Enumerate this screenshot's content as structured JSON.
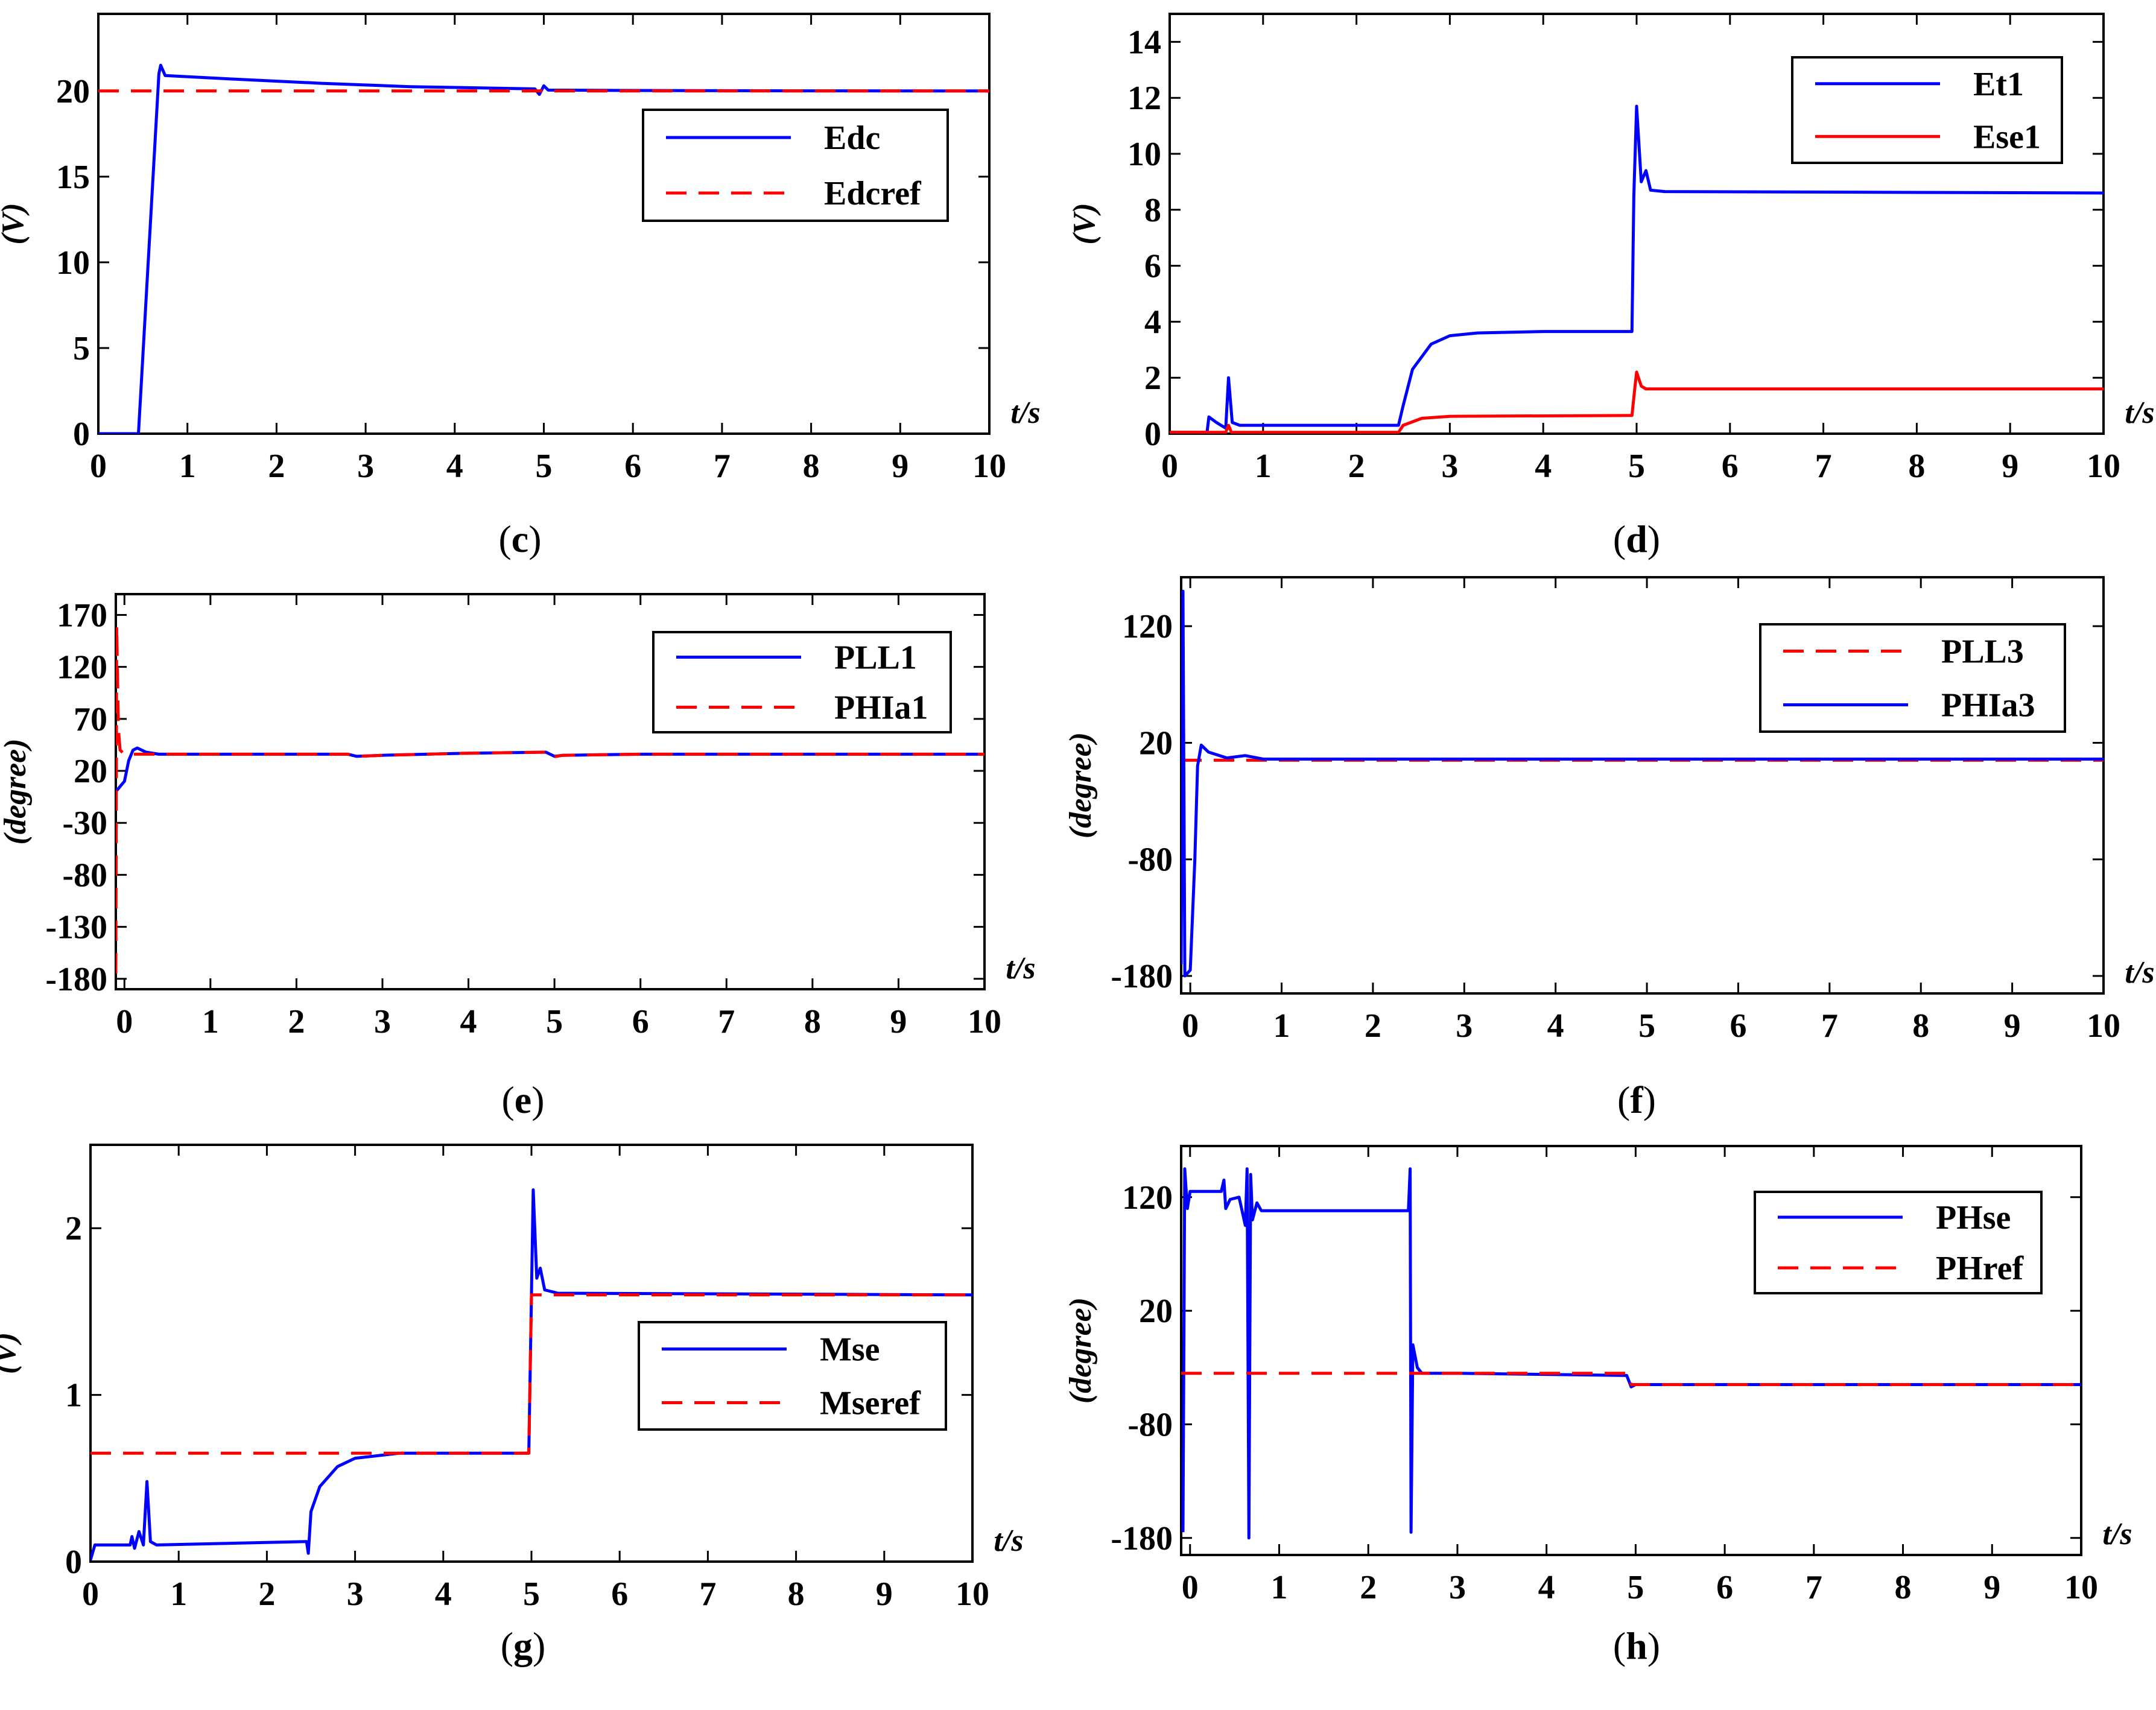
{
  "chart_data": [
    {
      "id": "c",
      "type": "line",
      "caption": "(c)",
      "caption_letter": "c",
      "ylabel": "(V)",
      "xlabel": "t/s",
      "xlim": [
        0,
        10
      ],
      "ylim": [
        0,
        24.5
      ],
      "xticks": [
        0,
        1,
        2,
        3,
        4,
        5,
        6,
        7,
        8,
        9,
        10
      ],
      "yticks": [
        0,
        5,
        10,
        15,
        20
      ],
      "ytick_labels": [
        "0",
        "5",
        "10",
        "15",
        "20"
      ],
      "legend_position": "upper-right",
      "series": [
        {
          "name": "Edc",
          "color": "#0000ff",
          "dash": false,
          "points": [
            [
              0,
              0
            ],
            [
              0.45,
              0
            ],
            [
              0.68,
              21
            ],
            [
              0.7,
              21.5
            ],
            [
              0.75,
              20.9
            ],
            [
              1.5,
              20.7
            ],
            [
              2.5,
              20.45
            ],
            [
              3.5,
              20.25
            ],
            [
              4.9,
              20.12
            ],
            [
              4.95,
              19.8
            ],
            [
              5.0,
              20.3
            ],
            [
              5.05,
              20.05
            ],
            [
              6,
              20.03
            ],
            [
              8,
              20.01
            ],
            [
              10,
              20.0
            ]
          ]
        },
        {
          "name": "Edcref",
          "color": "#ff0000",
          "dash": true,
          "points": [
            [
              0,
              20
            ],
            [
              10,
              20
            ]
          ]
        }
      ]
    },
    {
      "id": "d",
      "type": "line",
      "caption": "(d)",
      "caption_letter": "d",
      "ylabel": "(V)",
      "xlabel": "t/s",
      "xlim": [
        0,
        10
      ],
      "ylim": [
        0,
        15
      ],
      "xticks": [
        0,
        1,
        2,
        3,
        4,
        5,
        6,
        7,
        8,
        9,
        10
      ],
      "yticks": [
        0,
        2,
        4,
        6,
        8,
        10,
        12,
        14
      ],
      "ytick_labels": [
        "0",
        "2",
        "4",
        "6",
        "8",
        "10",
        "12",
        "14"
      ],
      "legend_position": "upper-right",
      "series": [
        {
          "name": "Et1",
          "color": "#0000ff",
          "dash": false,
          "points": [
            [
              0,
              0.05
            ],
            [
              0.4,
              0.05
            ],
            [
              0.42,
              0.6
            ],
            [
              0.5,
              0.4
            ],
            [
              0.55,
              0.3
            ],
            [
              0.6,
              0.2
            ],
            [
              0.63,
              2.0
            ],
            [
              0.67,
              0.4
            ],
            [
              0.75,
              0.3
            ],
            [
              2.45,
              0.3
            ],
            [
              2.5,
              1.0
            ],
            [
              2.6,
              2.3
            ],
            [
              2.8,
              3.2
            ],
            [
              3.0,
              3.5
            ],
            [
              3.3,
              3.6
            ],
            [
              4.0,
              3.65
            ],
            [
              4.95,
              3.65
            ],
            [
              4.97,
              8.5
            ],
            [
              5.0,
              11.7
            ],
            [
              5.05,
              9.0
            ],
            [
              5.1,
              9.4
            ],
            [
              5.15,
              8.7
            ],
            [
              5.3,
              8.65
            ],
            [
              10,
              8.6
            ]
          ]
        },
        {
          "name": "Ese1",
          "color": "#ff0000",
          "dash": false,
          "points": [
            [
              0,
              0.05
            ],
            [
              0.6,
              0.05
            ],
            [
              0.63,
              0.3
            ],
            [
              0.66,
              0.05
            ],
            [
              2.45,
              0.05
            ],
            [
              2.5,
              0.3
            ],
            [
              2.7,
              0.55
            ],
            [
              3.0,
              0.62
            ],
            [
              4.95,
              0.65
            ],
            [
              4.98,
              1.6
            ],
            [
              5.0,
              2.2
            ],
            [
              5.05,
              1.7
            ],
            [
              5.1,
              1.6
            ],
            [
              10,
              1.6
            ]
          ]
        }
      ]
    },
    {
      "id": "e",
      "type": "line",
      "caption": "(e)",
      "caption_letter": "e",
      "ylabel": "(degree)",
      "xlabel": "t/s",
      "xlim": [
        -0.1,
        10
      ],
      "ylim": [
        -190,
        190
      ],
      "xticks": [
        0,
        1,
        2,
        3,
        4,
        5,
        6,
        7,
        8,
        9,
        10
      ],
      "yticks": [
        -180,
        -130,
        -80,
        -30,
        20,
        70,
        120,
        170
      ],
      "ytick_labels": [
        "-180",
        "-130",
        "-80",
        "-30",
        "20",
        "70",
        "120",
        "170"
      ],
      "legend_position": "upper-right",
      "series": [
        {
          "name": "PLL1",
          "color": "#0000ff",
          "dash": false,
          "points": [
            [
              -0.1,
              0
            ],
            [
              -0.05,
              5
            ],
            [
              0,
              10
            ],
            [
              0.05,
              30
            ],
            [
              0.1,
              40
            ],
            [
              0.15,
              42
            ],
            [
              0.25,
              38
            ],
            [
              0.4,
              36
            ],
            [
              1,
              36
            ],
            [
              2.6,
              36
            ],
            [
              2.7,
              34
            ],
            [
              3,
              35
            ],
            [
              4,
              37
            ],
            [
              4.9,
              38
            ],
            [
              5.0,
              34
            ],
            [
              5.1,
              35
            ],
            [
              6,
              36
            ],
            [
              10,
              36
            ]
          ]
        },
        {
          "name": "PHIa1",
          "color": "#ff0000",
          "dash": true,
          "points": [
            [
              -0.1,
              -175
            ],
            [
              -0.09,
              160
            ],
            [
              -0.07,
              60
            ],
            [
              -0.05,
              40
            ],
            [
              0,
              36
            ],
            [
              1,
              36
            ],
            [
              2.6,
              36
            ],
            [
              2.7,
              34
            ],
            [
              3,
              35
            ],
            [
              4,
              37
            ],
            [
              4.9,
              38
            ],
            [
              4.95,
              33
            ],
            [
              5.1,
              35
            ],
            [
              6,
              36
            ],
            [
              10,
              36
            ]
          ]
        }
      ]
    },
    {
      "id": "f",
      "type": "line",
      "caption": "(f)",
      "caption_letter": "f",
      "ylabel": "(degree)",
      "xlabel": "t/s",
      "xlim": [
        -0.1,
        10
      ],
      "ylim": [
        -195,
        162
      ],
      "xticks": [
        0,
        1,
        2,
        3,
        4,
        5,
        6,
        7,
        8,
        9,
        10
      ],
      "yticks": [
        -180,
        -80,
        20,
        120
      ],
      "ytick_labels": [
        "-180",
        "-80",
        "20",
        "120"
      ],
      "legend_position": "upper-right",
      "series": [
        {
          "name": "PLL3",
          "color": "#ff0000",
          "dash": true,
          "points": [
            [
              -0.1,
              5
            ],
            [
              10,
              5
            ]
          ]
        },
        {
          "name": "PHIa3",
          "color": "#0000ff",
          "dash": false,
          "points": [
            [
              -0.1,
              -170
            ],
            [
              -0.08,
              150
            ],
            [
              -0.06,
              -180
            ],
            [
              0,
              -175
            ],
            [
              0.05,
              -80
            ],
            [
              0.08,
              0
            ],
            [
              0.12,
              18
            ],
            [
              0.2,
              12
            ],
            [
              0.4,
              7
            ],
            [
              0.6,
              9
            ],
            [
              0.8,
              6
            ],
            [
              1.5,
              6
            ],
            [
              10,
              6
            ]
          ]
        }
      ]
    },
    {
      "id": "g",
      "type": "line",
      "caption": "(g)",
      "caption_letter": "g",
      "ylabel": "(V)",
      "xlabel": "t/s",
      "xlim": [
        0,
        10
      ],
      "ylim": [
        0,
        2.5
      ],
      "xticks": [
        0,
        1,
        2,
        3,
        4,
        5,
        6,
        7,
        8,
        9,
        10
      ],
      "yticks": [
        0,
        1,
        2
      ],
      "ytick_labels": [
        "0",
        "1",
        "2"
      ],
      "legend_position": "center-right",
      "series": [
        {
          "name": "Mse",
          "color": "#0000ff",
          "dash": false,
          "points": [
            [
              0,
              0.01
            ],
            [
              0.05,
              0.1
            ],
            [
              0.45,
              0.1
            ],
            [
              0.47,
              0.15
            ],
            [
              0.5,
              0.08
            ],
            [
              0.55,
              0.18
            ],
            [
              0.6,
              0.1
            ],
            [
              0.64,
              0.48
            ],
            [
              0.68,
              0.12
            ],
            [
              0.75,
              0.1
            ],
            [
              2.45,
              0.12
            ],
            [
              2.47,
              0.05
            ],
            [
              2.5,
              0.3
            ],
            [
              2.6,
              0.45
            ],
            [
              2.8,
              0.57
            ],
            [
              3.0,
              0.62
            ],
            [
              3.5,
              0.65
            ],
            [
              4.97,
              0.65
            ],
            [
              5.0,
              1.6
            ],
            [
              5.02,
              2.23
            ],
            [
              5.06,
              1.7
            ],
            [
              5.1,
              1.76
            ],
            [
              5.15,
              1.63
            ],
            [
              5.3,
              1.61
            ],
            [
              10,
              1.6
            ]
          ]
        },
        {
          "name": "Mseref",
          "color": "#ff0000",
          "dash": true,
          "points": [
            [
              0,
              0.65
            ],
            [
              4.97,
              0.65
            ],
            [
              5.0,
              1.6
            ],
            [
              10,
              1.6
            ]
          ]
        }
      ]
    },
    {
      "id": "h",
      "type": "line",
      "caption": "(h)",
      "caption_letter": "h",
      "ylabel": "(degree)",
      "xlabel": "t/s",
      "xlim": [
        -0.1,
        10
      ],
      "ylim": [
        -195,
        165
      ],
      "xticks": [
        0,
        1,
        2,
        3,
        4,
        5,
        6,
        7,
        8,
        9,
        10
      ],
      "yticks": [
        -180,
        -80,
        20,
        120
      ],
      "ytick_labels": [
        "-180",
        "-80",
        "20",
        "120"
      ],
      "legend_position": "upper-right",
      "series": [
        {
          "name": "PHse",
          "color": "#0000ff",
          "dash": false,
          "points": [
            [
              -0.08,
              -175
            ],
            [
              -0.06,
              145
            ],
            [
              -0.03,
              110
            ],
            [
              0,
              125
            ],
            [
              0.35,
              125
            ],
            [
              0.38,
              135
            ],
            [
              0.4,
              110
            ],
            [
              0.45,
              118
            ],
            [
              0.55,
              120
            ],
            [
              0.62,
              95
            ],
            [
              0.64,
              145
            ],
            [
              0.66,
              -180
            ],
            [
              0.68,
              140
            ],
            [
              0.7,
              100
            ],
            [
              0.75,
              115
            ],
            [
              0.8,
              108
            ],
            [
              2.45,
              108
            ],
            [
              2.47,
              145
            ],
            [
              2.48,
              -175
            ],
            [
              2.5,
              -10
            ],
            [
              2.55,
              -30
            ],
            [
              2.6,
              -35
            ],
            [
              3.0,
              -35
            ],
            [
              4.9,
              -37
            ],
            [
              4.95,
              -47
            ],
            [
              5.0,
              -45
            ],
            [
              10,
              -45
            ]
          ]
        },
        {
          "name": "PHref",
          "color": "#ff0000",
          "dash": true,
          "points": [
            [
              -0.1,
              -35
            ],
            [
              4.9,
              -35
            ],
            [
              4.95,
              -45
            ],
            [
              10,
              -45
            ]
          ]
        }
      ]
    }
  ]
}
